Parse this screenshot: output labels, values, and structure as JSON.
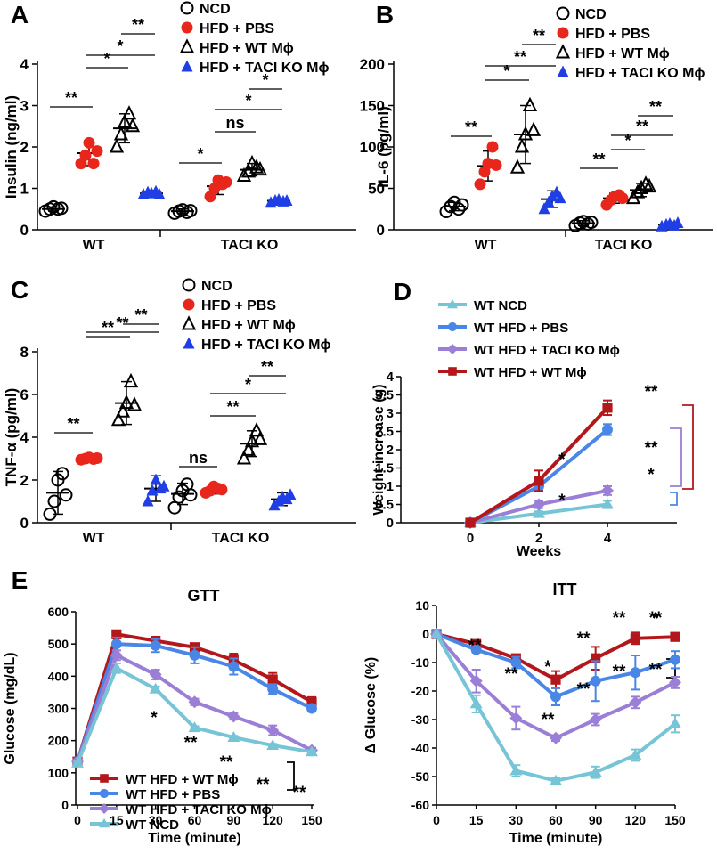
{
  "colors": {
    "red_dot": "#e8261c",
    "blue_tri": "#1f3ee6",
    "dark_red": "#b3171b",
    "med_blue": "#4a86e6",
    "purple": "#9b7fd6",
    "light_blue": "#76c5d6",
    "axis": "#000000"
  },
  "panel_letters": {
    "a": "A",
    "b": "B",
    "c": "C",
    "d": "D",
    "e": "E"
  },
  "groups_legend_abc": [
    "NCD",
    "HFD + PBS",
    "HFD + WT Mϕ",
    "HFD + TACI KO Mϕ"
  ],
  "chart_data": [
    {
      "id": "A",
      "type": "scatter",
      "ylabel": "Insulin (ng/ml)",
      "yticks": [
        "0",
        "1",
        "2",
        "3",
        "4"
      ],
      "ylim": [
        0,
        4
      ],
      "groups": [
        "WT",
        "TACI KO"
      ],
      "series": [
        {
          "name": "NCD",
          "marker": "open-circle",
          "mean": [
            0.5,
            0.45
          ],
          "sd": [
            0.05,
            0.05
          ],
          "points": [
            [
              0.45,
              0.5,
              0.55,
              0.5,
              0.52
            ],
            [
              0.4,
              0.45,
              0.48,
              0.42,
              0.46
            ]
          ]
        },
        {
          "name": "HFD + PBS",
          "marker": "red-circle",
          "mean": [
            1.85,
            1.05
          ],
          "sd": [
            0.3,
            0.2
          ],
          "points": [
            [
              1.6,
              1.8,
              2.1,
              1.6,
              1.9
            ],
            [
              0.8,
              1.0,
              1.2,
              1.1,
              1.15
            ]
          ]
        },
        {
          "name": "HFD + WT Mϕ",
          "marker": "open-triangle",
          "mean": [
            2.45,
            1.45
          ],
          "sd": [
            0.35,
            0.15
          ],
          "points": [
            [
              2.0,
              2.3,
              2.6,
              2.8,
              2.5
            ],
            [
              1.3,
              1.4,
              1.6,
              1.5,
              1.45
            ]
          ]
        },
        {
          "name": "HFD + TACI KO Mϕ",
          "marker": "blue-triangle",
          "mean": [
            0.88,
            0.7
          ],
          "sd": [
            0.07,
            0.05
          ],
          "points": [
            [
              0.85,
              0.9,
              0.88,
              0.92,
              0.85
            ],
            [
              0.65,
              0.7,
              0.72,
              0.68,
              0.7
            ]
          ]
        }
      ],
      "significance": [
        {
          "from": 0,
          "to": 1,
          "group": 0,
          "label": "**"
        },
        {
          "from": 1,
          "to": 2,
          "group": 0,
          "label": "*"
        },
        {
          "from": 1,
          "to": 3,
          "group": 0,
          "label": "*"
        },
        {
          "from": 2,
          "to": 3,
          "group": 0,
          "label": "**"
        },
        {
          "from": 0,
          "to": 1,
          "group": 1,
          "label": "*"
        },
        {
          "from": 1,
          "to": 2,
          "group": 1,
          "label": "ns"
        },
        {
          "from": 1,
          "to": 3,
          "group": 1,
          "label": "*"
        },
        {
          "from": 2,
          "to": 3,
          "group": 1,
          "label": "*"
        }
      ]
    },
    {
      "id": "B",
      "type": "scatter",
      "ylabel": "IL-6 (pg/ml)",
      "yticks": [
        "0",
        "50",
        "100",
        "150",
        "200"
      ],
      "ylim": [
        0,
        200
      ],
      "groups": [
        "WT",
        "TACI KO"
      ],
      "series": [
        {
          "name": "NCD",
          "marker": "open-circle",
          "mean": [
            28,
            8
          ],
          "sd": [
            5,
            3
          ],
          "points": [
            [
              22,
              28,
              33,
              25,
              30
            ],
            [
              5,
              8,
              10,
              7,
              9
            ]
          ]
        },
        {
          "name": "HFD + PBS",
          "marker": "red-circle",
          "mean": [
            77,
            38
          ],
          "sd": [
            18,
            6
          ],
          "points": [
            [
              55,
              70,
              80,
              100,
              78
            ],
            [
              30,
              36,
              40,
              42,
              38
            ]
          ]
        },
        {
          "name": "HFD + WT Mϕ",
          "marker": "open-triangle",
          "mean": [
            115,
            48
          ],
          "sd": [
            35,
            8
          ],
          "points": [
            [
              75,
              100,
              115,
              150,
              120
            ],
            [
              38,
              45,
              50,
              55,
              52
            ]
          ]
        },
        {
          "name": "HFD + TACI KO Mϕ",
          "marker": "blue-triangle",
          "mean": [
            37,
            6
          ],
          "sd": [
            10,
            3
          ],
          "points": [
            [
              25,
              33,
              40,
              45,
              38
            ],
            [
              4,
              6,
              7,
              5,
              8
            ]
          ]
        }
      ],
      "significance": [
        {
          "from": 0,
          "to": 1,
          "group": 0,
          "label": "**"
        },
        {
          "from": 1,
          "to": 2,
          "group": 0,
          "label": "*"
        },
        {
          "from": 1,
          "to": 3,
          "group": 0,
          "label": "**"
        },
        {
          "from": 2,
          "to": 3,
          "group": 0,
          "label": "**"
        },
        {
          "from": 0,
          "to": 1,
          "group": 1,
          "label": "**"
        },
        {
          "from": 1,
          "to": 2,
          "group": 1,
          "label": "*"
        },
        {
          "from": 1,
          "to": 3,
          "group": 1,
          "label": "**"
        },
        {
          "from": 2,
          "to": 3,
          "group": 1,
          "label": "**"
        }
      ]
    },
    {
      "id": "C",
      "type": "scatter",
      "ylabel": "TNF-α (pg/ml)",
      "yticks": [
        "0",
        "2",
        "4",
        "6",
        "8"
      ],
      "ylim": [
        0,
        8
      ],
      "groups": [
        "WT",
        "TACI KO"
      ],
      "series": [
        {
          "name": "NCD",
          "marker": "open-circle",
          "mean": [
            1.4,
            1.35
          ],
          "sd": [
            1.0,
            0.5
          ],
          "points": [
            [
              0.4,
              1.0,
              2.0,
              2.3,
              1.3
            ],
            [
              0.7,
              1.2,
              1.5,
              1.8,
              1.3
            ]
          ]
        },
        {
          "name": "HFD + PBS",
          "marker": "red-circle",
          "mean": [
            3.0,
            1.55
          ],
          "sd": [
            0.1,
            0.2
          ],
          "points": [
            [
              2.95,
              3.0,
              3.05,
              2.98,
              3.02
            ],
            [
              1.4,
              1.5,
              1.7,
              1.6,
              1.55
            ]
          ]
        },
        {
          "name": "HFD + WT Mϕ",
          "marker": "open-triangle",
          "mean": [
            5.6,
            3.7
          ],
          "sd": [
            1.0,
            0.6
          ],
          "points": [
            [
              4.8,
              5.2,
              5.6,
              6.6,
              5.5
            ],
            [
              3.0,
              3.4,
              3.8,
              4.3,
              3.9
            ]
          ]
        },
        {
          "name": "HFD + TACI KO Mϕ",
          "marker": "blue-triangle",
          "mean": [
            1.6,
            1.1
          ],
          "sd": [
            0.6,
            0.3
          ],
          "points": [
            [
              1.0,
              1.5,
              2.0,
              1.6,
              1.7
            ],
            [
              0.8,
              1.0,
              1.2,
              1.1,
              1.3
            ]
          ]
        }
      ],
      "significance": [
        {
          "from": 0,
          "to": 1,
          "group": 0,
          "label": "**"
        },
        {
          "from": 1,
          "to": 2,
          "group": 0,
          "label": "**"
        },
        {
          "from": 1,
          "to": 3,
          "group": 0,
          "label": "**"
        },
        {
          "from": 2,
          "to": 3,
          "group": 0,
          "label": "**"
        },
        {
          "from": 0,
          "to": 1,
          "group": 1,
          "label": "ns"
        },
        {
          "from": 1,
          "to": 2,
          "group": 1,
          "label": "**"
        },
        {
          "from": 1,
          "to": 3,
          "group": 1,
          "label": "*"
        },
        {
          "from": 2,
          "to": 3,
          "group": 1,
          "label": "**"
        }
      ]
    },
    {
      "id": "D",
      "type": "line",
      "xlabel": "Weeks",
      "ylabel": "Weight increase (g)",
      "x": [
        0,
        2,
        4
      ],
      "xticks": [
        "0",
        "2",
        "4"
      ],
      "yticks": [
        "0",
        "0.5",
        "1",
        "1.5",
        "2",
        "2.5",
        "3",
        "3.5",
        "4"
      ],
      "ylim": [
        0,
        4
      ],
      "series": [
        {
          "name": "WT NCD",
          "color": "light_blue",
          "marker": "triangle",
          "values": [
            0,
            0.25,
            0.5
          ],
          "err": [
            0,
            0.06,
            0.1
          ]
        },
        {
          "name": "WT HFD + PBS",
          "color": "med_blue",
          "marker": "circle",
          "values": [
            0,
            1.0,
            2.55
          ],
          "err": [
            0,
            0.12,
            0.15
          ]
        },
        {
          "name": "WT HFD + TACI KO Mϕ",
          "color": "purple",
          "marker": "diamond",
          "values": [
            0,
            0.5,
            0.88
          ],
          "err": [
            0,
            0.1,
            0.12
          ]
        },
        {
          "name": "WT HFD + WT Mϕ",
          "color": "dark_red",
          "marker": "square",
          "values": [
            0,
            1.15,
            3.15
          ],
          "err": [
            0,
            0.28,
            0.2
          ]
        }
      ],
      "annotations": [
        "*",
        "*",
        "**",
        "**",
        "*"
      ]
    },
    {
      "id": "E1",
      "type": "line",
      "title": "GTT",
      "xlabel": "Time (minute)",
      "ylabel": "Glucose (mg/dL)",
      "x": [
        0,
        15,
        30,
        60,
        90,
        120,
        150
      ],
      "xticks": [
        "0",
        "15",
        "30",
        "60",
        "90",
        "120",
        "150"
      ],
      "yticks": [
        "0",
        "100",
        "200",
        "300",
        "400",
        "500",
        "600"
      ],
      "ylim": [
        0,
        600
      ],
      "series": [
        {
          "name": "WT HFD + WT Mϕ",
          "color": "dark_red",
          "marker": "square",
          "values": [
            135,
            530,
            510,
            490,
            450,
            390,
            320
          ],
          "err": [
            5,
            10,
            12,
            12,
            20,
            20,
            15
          ]
        },
        {
          "name": "WT HFD + PBS",
          "color": "med_blue",
          "marker": "circle",
          "values": [
            135,
            500,
            495,
            465,
            430,
            360,
            300
          ],
          "err": [
            5,
            20,
            20,
            25,
            25,
            15,
            10
          ]
        },
        {
          "name": "WT HFD + TACI KO Mϕ",
          "color": "purple",
          "marker": "diamond",
          "values": [
            135,
            465,
            405,
            320,
            275,
            232,
            170
          ],
          "err": [
            5,
            15,
            15,
            10,
            10,
            15,
            8
          ]
        },
        {
          "name": "WT NCD",
          "color": "light_blue",
          "marker": "triangle",
          "values": [
            130,
            425,
            360,
            240,
            210,
            185,
            165
          ],
          "err": [
            5,
            15,
            8,
            5,
            5,
            5,
            5
          ]
        }
      ],
      "annotations": [
        "*",
        "**",
        "**",
        "**",
        "**"
      ]
    },
    {
      "id": "E2",
      "type": "line",
      "title": "ITT",
      "xlabel": "Time (minute)",
      "ylabel": "Δ Glucose (%)",
      "x": [
        0,
        15,
        30,
        60,
        90,
        120,
        150
      ],
      "xticks": [
        "0",
        "15",
        "30",
        "60",
        "90",
        "120",
        "150"
      ],
      "yticks": [
        "10",
        "0",
        "-10",
        "-20",
        "-30",
        "-40",
        "-50",
        "-60"
      ],
      "ylim": [
        -60,
        10
      ],
      "series": [
        {
          "name": "WT HFD + WT Mϕ",
          "color": "dark_red",
          "marker": "square",
          "values": [
            0,
            -3.5,
            -8.5,
            -16,
            -8.5,
            -1.5,
            -1
          ],
          "err": [
            0,
            1,
            1,
            3,
            4,
            2,
            1
          ]
        },
        {
          "name": "WT HFD + PBS",
          "color": "med_blue",
          "marker": "circle",
          "values": [
            0,
            -5.5,
            -10,
            -22,
            -16.5,
            -13.5,
            -9
          ],
          "err": [
            0,
            1,
            2,
            3,
            7,
            6,
            3
          ]
        },
        {
          "name": "WT HFD + TACI KO Mϕ",
          "color": "purple",
          "marker": "diamond",
          "values": [
            0,
            -16.5,
            -29.5,
            -36.5,
            -30,
            -24,
            -17
          ],
          "err": [
            0,
            4,
            4,
            1,
            2,
            2,
            2
          ]
        },
        {
          "name": "WT NCD",
          "color": "light_blue",
          "marker": "triangle",
          "values": [
            0,
            -24.5,
            -48,
            -51.5,
            -48.5,
            -42.5,
            -31.5
          ],
          "err": [
            0,
            3,
            2,
            1,
            2,
            2,
            3
          ]
        }
      ],
      "annotations": [
        "**",
        "**",
        "**",
        "*",
        "**",
        "**",
        "**",
        "**",
        "**",
        "**",
        "*"
      ]
    }
  ]
}
